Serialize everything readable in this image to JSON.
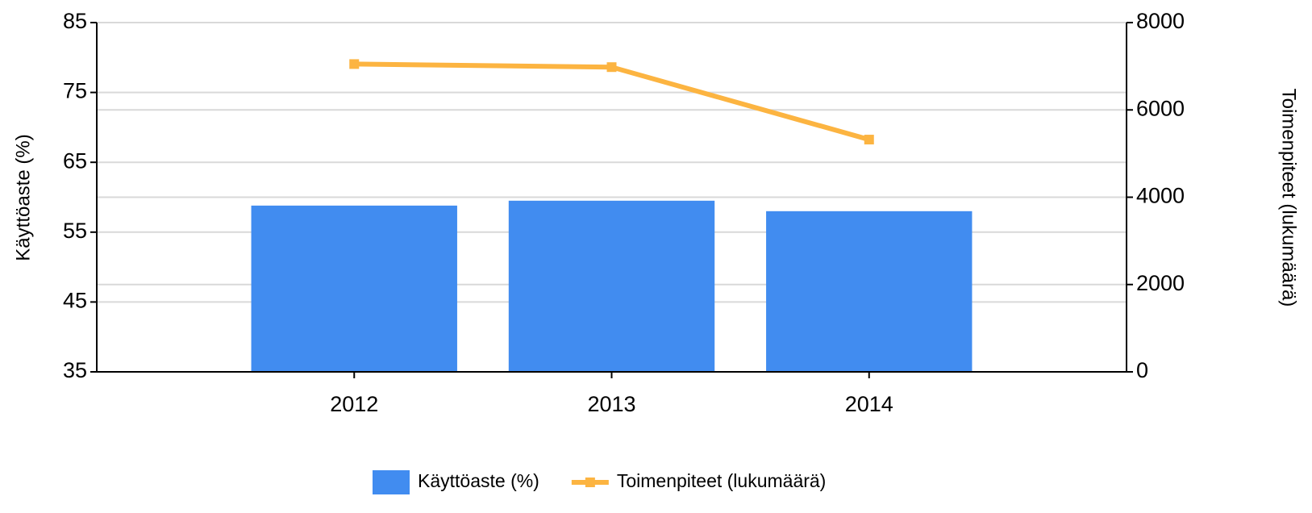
{
  "chart_data": {
    "type": "bar",
    "categories": [
      "2012",
      "2013",
      "2014"
    ],
    "series": [
      {
        "name": "Käyttöaste (%)",
        "type": "bar",
        "color": "#418cf0",
        "values": [
          58.8,
          59.5,
          58.0
        ]
      },
      {
        "name": "Toimenpiteet (lukumäärä)",
        "type": "line",
        "axis": "y2",
        "color": "#fcb441",
        "values": [
          7050,
          6980,
          5320
        ]
      }
    ],
    "ylabel": "Käyttöaste (%)",
    "y2label": "Toimenpiteet (lukumäärä)",
    "ylim": [
      35,
      85
    ],
    "yticks": [
      35,
      45,
      55,
      65,
      75,
      85
    ],
    "y2lim": [
      0,
      8000
    ],
    "y2ticks": [
      0,
      2000,
      4000,
      6000,
      8000
    ],
    "grid": true,
    "legend": "bottom"
  }
}
